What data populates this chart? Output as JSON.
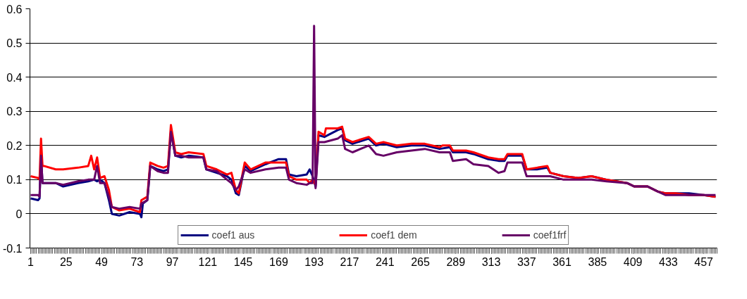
{
  "chart_data": {
    "type": "line",
    "xlim": [
      0.5,
      466
    ],
    "xticks": [
      1,
      25,
      49,
      73,
      97,
      121,
      145,
      169,
      193,
      217,
      241,
      265,
      289,
      313,
      337,
      361,
      385,
      409,
      433,
      457
    ],
    "ylim": [
      -0.1,
      0.6
    ],
    "yticks": [
      -0.1,
      0,
      0.1,
      0.2,
      0.3,
      0.4,
      0.5,
      0.6
    ],
    "grid": "y",
    "legend": "bottom",
    "marker": "none",
    "line_style": "solid",
    "series": [
      {
        "name": "coef1 aus",
        "color": "#000080",
        "x": [
          1,
          6,
          7,
          8,
          9,
          18,
          23,
          33,
          40,
          44,
          46,
          48,
          51,
          54,
          56,
          61,
          68,
          75,
          76,
          77,
          80,
          82,
          87,
          91,
          94,
          96,
          99,
          103,
          108,
          118,
          120,
          127,
          134,
          137,
          140,
          142,
          146,
          150,
          160,
          169,
          174,
          176,
          181,
          188,
          190,
          192,
          194,
          196,
          200,
          209,
          212,
          214,
          219,
          230,
          235,
          240,
          249,
          259,
          268,
          278,
          285,
          287,
          296,
          301,
          311,
          318,
          322,
          324,
          334,
          337,
          344,
          351,
          353,
          362,
          372,
          381,
          391,
          405,
          410,
          419,
          426,
          431,
          438,
          447,
          457,
          465
        ],
        "values": [
          0.045,
          0.04,
          0.045,
          0.17,
          0.09,
          0.09,
          0.08,
          0.09,
          0.095,
          0.1,
          0.095,
          0.1,
          0.09,
          0.04,
          0.0,
          -0.005,
          0.005,
          0.0,
          -0.01,
          0.03,
          0.04,
          0.14,
          0.13,
          0.125,
          0.13,
          0.24,
          0.17,
          0.165,
          0.17,
          0.165,
          0.13,
          0.12,
          0.11,
          0.1,
          0.06,
          0.055,
          0.14,
          0.125,
          0.145,
          0.16,
          0.16,
          0.115,
          0.11,
          0.115,
          0.13,
          0.11,
          0.08,
          0.23,
          0.225,
          0.245,
          0.25,
          0.215,
          0.205,
          0.22,
          0.2,
          0.205,
          0.195,
          0.2,
          0.2,
          0.19,
          0.195,
          0.18,
          0.18,
          0.175,
          0.16,
          0.155,
          0.155,
          0.17,
          0.17,
          0.13,
          0.13,
          0.135,
          0.12,
          0.11,
          0.105,
          0.11,
          0.1,
          0.09,
          0.08,
          0.08,
          0.065,
          0.06,
          0.06,
          0.06,
          0.055,
          0.05
        ]
      },
      {
        "name": "coef1 dem",
        "color": "#ff0000",
        "x": [
          1,
          6,
          7,
          8,
          9,
          10,
          18,
          23,
          33,
          40,
          42,
          44,
          46,
          48,
          51,
          54,
          56,
          61,
          68,
          75,
          76,
          80,
          82,
          87,
          91,
          94,
          96,
          99,
          103,
          108,
          118,
          120,
          127,
          134,
          137,
          140,
          142,
          146,
          150,
          160,
          169,
          174,
          176,
          181,
          188,
          190,
          192,
          194,
          196,
          200,
          201,
          209,
          212,
          214,
          219,
          230,
          235,
          240,
          249,
          259,
          268,
          278,
          280,
          285,
          287,
          296,
          301,
          311,
          318,
          322,
          324,
          334,
          337,
          344,
          351,
          353,
          362,
          372,
          381,
          391,
          405,
          410,
          419,
          426,
          431,
          438,
          447,
          457,
          465
        ],
        "values": [
          0.11,
          0.105,
          0.1,
          0.22,
          0.14,
          0.14,
          0.13,
          0.13,
          0.135,
          0.14,
          0.17,
          0.13,
          0.165,
          0.105,
          0.11,
          0.07,
          0.02,
          0.01,
          0.015,
          0.005,
          0.04,
          0.05,
          0.15,
          0.14,
          0.135,
          0.14,
          0.26,
          0.18,
          0.175,
          0.18,
          0.175,
          0.14,
          0.13,
          0.115,
          0.12,
          0.07,
          0.06,
          0.15,
          0.13,
          0.15,
          0.15,
          0.15,
          0.11,
          0.1,
          0.1,
          0.09,
          0.1,
          0.085,
          0.24,
          0.23,
          0.25,
          0.25,
          0.255,
          0.22,
          0.21,
          0.225,
          0.205,
          0.21,
          0.2,
          0.205,
          0.205,
          0.195,
          0.2,
          0.2,
          0.185,
          0.185,
          0.18,
          0.165,
          0.16,
          0.16,
          0.175,
          0.175,
          0.13,
          0.135,
          0.14,
          0.12,
          0.11,
          0.105,
          0.11,
          0.1,
          0.09,
          0.08,
          0.08,
          0.065,
          0.06,
          0.06,
          0.055,
          0.055,
          0.05
        ]
      },
      {
        "name": "coef1frf",
        "color": "#660066",
        "x": [
          1,
          6,
          7,
          8,
          9,
          18,
          23,
          33,
          40,
          44,
          46,
          48,
          51,
          54,
          56,
          61,
          68,
          75,
          76,
          80,
          82,
          87,
          91,
          94,
          96,
          99,
          103,
          108,
          118,
          120,
          127,
          134,
          137,
          140,
          142,
          146,
          150,
          160,
          169,
          174,
          176,
          181,
          188,
          190,
          192,
          193,
          194,
          196,
          200,
          209,
          212,
          214,
          219,
          230,
          235,
          240,
          249,
          259,
          268,
          278,
          285,
          287,
          296,
          301,
          311,
          318,
          322,
          324,
          334,
          337,
          344,
          353,
          362,
          372,
          381,
          391,
          405,
          410,
          419,
          426,
          431,
          438,
          447,
          457,
          465
        ],
        "values": [
          0.055,
          0.055,
          0.05,
          0.17,
          0.09,
          0.09,
          0.085,
          0.095,
          0.1,
          0.1,
          0.14,
          0.09,
          0.09,
          0.05,
          0.02,
          0.015,
          0.02,
          0.015,
          0.03,
          0.04,
          0.14,
          0.125,
          0.12,
          0.12,
          0.24,
          0.17,
          0.17,
          0.165,
          0.165,
          0.13,
          0.125,
          0.1,
          0.09,
          0.07,
          0.08,
          0.13,
          0.12,
          0.13,
          0.135,
          0.135,
          0.1,
          0.09,
          0.085,
          0.09,
          0.09,
          0.55,
          0.075,
          0.21,
          0.21,
          0.22,
          0.23,
          0.19,
          0.18,
          0.2,
          0.175,
          0.17,
          0.18,
          0.185,
          0.19,
          0.18,
          0.18,
          0.155,
          0.16,
          0.145,
          0.14,
          0.12,
          0.125,
          0.15,
          0.15,
          0.11,
          0.11,
          0.11,
          0.1,
          0.1,
          0.1,
          0.095,
          0.09,
          0.08,
          0.08,
          0.065,
          0.055,
          0.055,
          0.055,
          0.055,
          0.055
        ]
      }
    ]
  }
}
